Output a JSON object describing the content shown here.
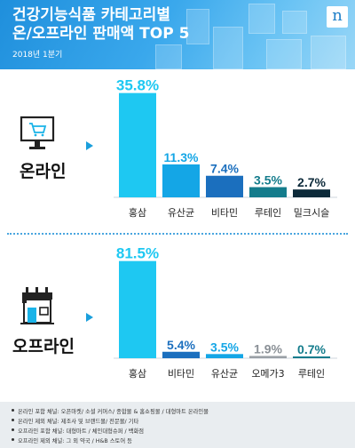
{
  "header": {
    "title_line1": "건강기능식품 카테고리별",
    "title_line2": "온/오프라인 판매액 TOP 5",
    "subtitle": "2018년 1분기",
    "logo_letter": "n"
  },
  "colors": {
    "header_blue": "#2196e0",
    "bar_top1": "#1ec8f2",
    "bar_top2": "#14a6e6",
    "bar_top3": "#1b6fbe",
    "bar_top4": "#147c8c",
    "bar_top5": "#0d2a3a",
    "bar_gray": "#9aa0a6",
    "accent": "#1a9fdc"
  },
  "sections": {
    "online": {
      "label": "온라인",
      "icon": "computer-cart-icon"
    },
    "offline": {
      "label": "오프라인",
      "icon": "storefront-icon"
    }
  },
  "chart_data": [
    {
      "type": "bar",
      "categories": [
        "홍삼",
        "유산균",
        "비타민",
        "루테인",
        "밀크시슬"
      ],
      "values": [
        35.8,
        11.3,
        7.4,
        3.5,
        2.7
      ],
      "value_labels": [
        "35.8%",
        "11.3%",
        "7.4%",
        "3.5%",
        "2.7%"
      ],
      "ylim": [
        0,
        36
      ]
    },
    {
      "type": "bar",
      "categories": [
        "홍삼",
        "비타민",
        "유산균",
        "오메가3",
        "루테인"
      ],
      "values": [
        81.5,
        5.4,
        3.5,
        1.9,
        0.7
      ],
      "value_labels": [
        "81.5%",
        "5.4%",
        "3.5%",
        "1.9%",
        "0.7%"
      ],
      "ylim": [
        0,
        82
      ]
    }
  ],
  "footnotes": [
    "온라인 포함 채널: 오픈마켓/ 소셜 커머스/ 종합몰 & 홈쇼핑몰 / 대형마트 온라인몰",
    "온라인 제외 채널: 제조사 및 브랜드몰/ 전문몰/ 기타",
    "오프라인 포함 채널: 대형마트 / 체인대형슈퍼 / 백화점",
    "오프라인 제외 채널: 그 외 약국 / H&B 스토어 등"
  ]
}
